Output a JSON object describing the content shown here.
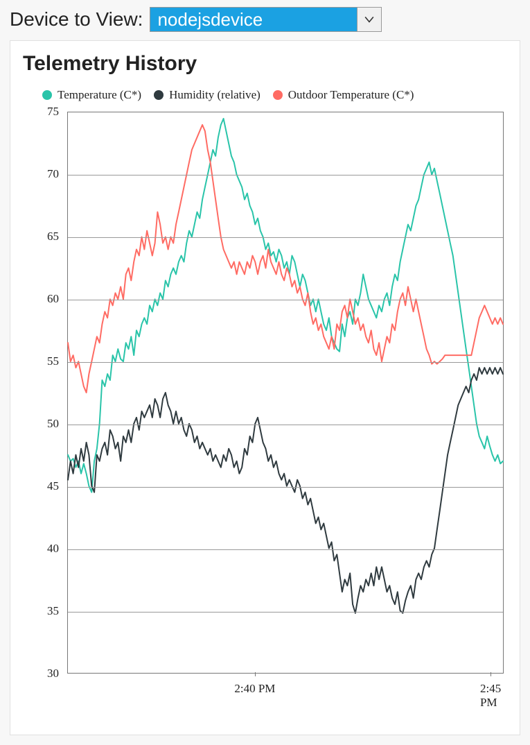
{
  "header": {
    "label": "Device to View:",
    "selected_device": "nodejsdevice"
  },
  "panel": {
    "title": "Telemetry History"
  },
  "chart": {
    "type": "line",
    "ylim": [
      30,
      75
    ],
    "ytick_step": 5,
    "yticks": [
      30,
      35,
      40,
      45,
      50,
      55,
      60,
      65,
      70,
      75
    ],
    "xticks": [
      {
        "pos": 0.43,
        "label": "2:40 PM"
      },
      {
        "pos": 0.97,
        "label": "2:45 PM"
      }
    ],
    "grid_color": "#999999",
    "background_color": "#ffffff",
    "axis_color": "#777777",
    "line_width": 2,
    "font_family_axes": "Georgia",
    "axis_fontsize": 17,
    "series": [
      {
        "name": "Temperature (C*)",
        "color": "#29c4a9",
        "values": [
          47.5,
          47.0,
          47.2,
          46.5,
          47.0,
          46.0,
          46.8,
          46.0,
          45.0,
          44.5,
          47.0,
          48.0,
          50.0,
          53.5,
          53.0,
          54.0,
          53.5,
          55.5,
          55.0,
          56.0,
          55.2,
          55.0,
          56.5,
          56.0,
          57.0,
          55.5,
          57.5,
          57.0,
          58.0,
          58.5,
          58.0,
          59.5,
          59.0,
          60.0,
          59.5,
          60.5,
          60.0,
          61.5,
          61.0,
          62.0,
          62.5,
          62.0,
          63.0,
          63.5,
          63.0,
          64.5,
          65.5,
          65.0,
          66.0,
          67.0,
          66.5,
          68.0,
          69.0,
          70.0,
          71.0,
          72.0,
          71.5,
          73.0,
          74.0,
          74.5,
          73.5,
          72.5,
          71.5,
          71.0,
          70.0,
          69.5,
          69.0,
          68.0,
          68.5,
          67.5,
          67.0,
          66.0,
          66.5,
          65.5,
          65.0,
          64.0,
          64.5,
          63.5,
          63.8,
          63.0,
          64.0,
          63.5,
          62.5,
          63.0,
          62.0,
          63.5,
          63.0,
          62.0,
          61.0,
          62.0,
          61.5,
          60.5,
          59.5,
          60.0,
          59.0,
          60.0,
          59.0,
          58.0,
          57.5,
          58.5,
          57.0,
          56.5,
          56.0,
          55.8,
          58.0,
          57.0,
          58.5,
          59.0,
          58.0,
          60.0,
          59.5,
          60.5,
          62.0,
          61.0,
          60.0,
          59.5,
          59.0,
          58.5,
          59.5,
          59.0,
          60.0,
          60.5,
          59.5,
          61.0,
          62.0,
          61.5,
          63.0,
          64.0,
          65.0,
          66.0,
          65.5,
          66.5,
          67.5,
          68.0,
          69.0,
          70.0,
          70.5,
          71.0,
          70.0,
          70.5,
          69.5,
          68.5,
          67.5,
          66.5,
          65.5,
          64.5,
          63.5,
          62.0,
          60.5,
          59.0,
          57.5,
          56.0,
          54.5,
          53.0,
          51.5,
          50.0,
          49.0,
          48.5,
          48.0,
          49.0,
          48.2,
          47.5,
          47.0,
          47.5,
          46.8,
          47.0
        ]
      },
      {
        "name": "Humidity (relative)",
        "color": "#2f3a3f",
        "values": [
          45.5,
          47.0,
          46.0,
          47.5,
          46.5,
          48.0,
          47.0,
          48.5,
          47.5,
          45.0,
          44.5,
          47.5,
          47.0,
          48.0,
          48.5,
          47.5,
          49.5,
          49.0,
          48.0,
          48.5,
          47.0,
          49.0,
          48.5,
          49.5,
          48.5,
          50.0,
          50.5,
          49.5,
          51.0,
          50.5,
          51.0,
          51.5,
          50.5,
          52.0,
          51.5,
          50.5,
          52.0,
          52.5,
          51.5,
          51.0,
          50.0,
          51.0,
          50.0,
          50.5,
          49.5,
          49.0,
          50.0,
          49.5,
          48.5,
          49.0,
          48.0,
          48.5,
          48.0,
          47.5,
          48.0,
          47.0,
          47.5,
          47.0,
          46.5,
          47.5,
          47.0,
          48.0,
          47.5,
          46.5,
          47.0,
          46.0,
          46.5,
          48.0,
          47.5,
          49.0,
          48.5,
          50.0,
          50.5,
          49.5,
          48.5,
          48.0,
          47.0,
          47.5,
          46.5,
          47.0,
          46.0,
          45.5,
          46.0,
          45.0,
          45.5,
          45.0,
          44.5,
          45.5,
          45.0,
          44.0,
          44.5,
          43.5,
          44.0,
          43.0,
          42.0,
          42.5,
          41.5,
          42.0,
          41.0,
          40.0,
          40.5,
          39.0,
          39.5,
          38.0,
          36.5,
          37.5,
          37.0,
          38.0,
          35.5,
          34.8,
          36.0,
          37.0,
          36.5,
          37.5,
          37.0,
          38.0,
          37.0,
          38.5,
          37.5,
          38.5,
          37.5,
          36.5,
          37.0,
          36.0,
          35.5,
          36.5,
          35.0,
          34.8,
          35.8,
          36.5,
          37.0,
          36.0,
          37.5,
          38.0,
          37.5,
          38.5,
          39.0,
          38.5,
          39.5,
          40.0,
          41.5,
          43.0,
          44.5,
          46.0,
          47.5,
          48.5,
          49.5,
          50.5,
          51.5,
          52.0,
          52.5,
          53.0,
          52.5,
          53.5,
          54.0,
          53.5,
          54.5,
          54.0,
          54.5,
          54.0,
          54.5,
          54.0,
          54.5,
          54.0,
          54.5,
          54.0
        ]
      },
      {
        "name": "Outdoor Temperature (C*)",
        "color": "#ff6b63",
        "values": [
          56.5,
          55.0,
          55.5,
          54.5,
          55.0,
          54.0,
          53.0,
          52.5,
          54.0,
          55.0,
          56.0,
          57.0,
          56.5,
          58.0,
          59.0,
          58.5,
          60.0,
          59.5,
          60.5,
          60.0,
          61.0,
          60.0,
          62.0,
          62.5,
          61.5,
          63.0,
          64.0,
          63.5,
          65.0,
          64.0,
          65.5,
          64.5,
          63.5,
          64.5,
          67.0,
          66.0,
          64.5,
          65.0,
          64.0,
          65.0,
          64.5,
          66.0,
          67.0,
          68.0,
          69.0,
          70.0,
          71.0,
          72.0,
          72.5,
          73.0,
          73.5,
          74.0,
          73.5,
          72.0,
          71.0,
          69.5,
          68.0,
          66.5,
          65.0,
          64.0,
          63.5,
          63.0,
          62.5,
          63.0,
          62.0,
          63.0,
          62.5,
          62.0,
          63.0,
          62.5,
          63.5,
          63.0,
          62.0,
          63.0,
          63.5,
          62.5,
          64.0,
          63.0,
          62.5,
          62.0,
          63.0,
          62.0,
          61.5,
          62.5,
          62.0,
          61.0,
          61.5,
          60.5,
          61.0,
          60.0,
          59.5,
          60.5,
          59.0,
          58.0,
          58.5,
          57.5,
          58.0,
          57.0,
          56.5,
          56.0,
          57.0,
          56.0,
          58.0,
          57.5,
          59.0,
          59.5,
          58.5,
          60.0,
          59.0,
          58.0,
          58.5,
          57.5,
          58.0,
          57.0,
          56.5,
          57.5,
          56.0,
          55.5,
          56.5,
          55.0,
          56.0,
          57.0,
          56.5,
          58.0,
          57.5,
          59.0,
          60.0,
          60.5,
          59.5,
          61.0,
          60.0,
          59.0,
          60.0,
          59.0,
          58.0,
          57.0,
          56.0,
          55.5,
          54.8,
          55.0,
          54.8,
          55.0,
          55.2,
          55.5,
          55.5,
          55.5,
          55.5,
          55.5,
          55.5,
          55.5,
          55.5,
          55.5,
          55.5,
          55.5,
          56.5,
          57.5,
          58.5,
          59.0,
          59.5,
          59.0,
          58.5,
          58.0,
          58.5,
          58.0,
          58.5,
          58.0
        ]
      }
    ]
  }
}
